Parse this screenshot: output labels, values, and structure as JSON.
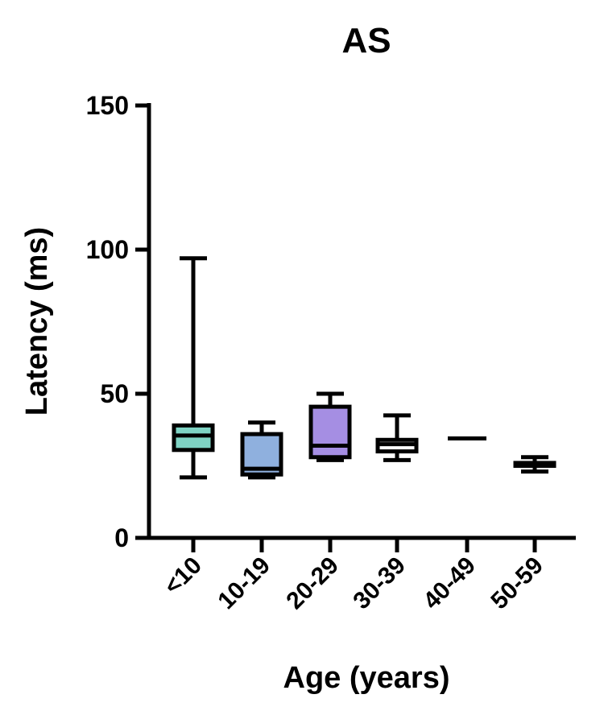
{
  "chart_data": {
    "type": "box",
    "title": "AS",
    "xlabel": "Age (years)",
    "ylabel": "Latency (ms)",
    "ylim": [
      0,
      150
    ],
    "yticks": [
      0,
      50,
      100,
      150
    ],
    "grid": false,
    "legend": "none",
    "categories": [
      "<10",
      "10-19",
      "20-29",
      "30-39",
      "40-49",
      "50-59"
    ],
    "boxes": [
      {
        "min": 21,
        "q1": 30.5,
        "median": 35.5,
        "q3": 39,
        "max": 97,
        "color": "#7fd3c4"
      },
      {
        "min": 21,
        "q1": 22,
        "median": 24,
        "q3": 36,
        "max": 40,
        "color": "#8fb0de"
      },
      {
        "min": 27,
        "q1": 28,
        "median": 32,
        "q3": 45.5,
        "max": 50,
        "color": "#a58ee3"
      },
      {
        "min": 27,
        "q1": 30,
        "median": 32.5,
        "q3": 34,
        "max": 42.5,
        "color": "#ffffff"
      },
      {
        "min": 34.5,
        "q1": 34.5,
        "median": 34.5,
        "q3": 34.5,
        "max": 34.5,
        "color": "#ffffff"
      },
      {
        "min": 23,
        "q1": 25,
        "median": 25.5,
        "q3": 26,
        "max": 28,
        "color": "#ffffff"
      }
    ]
  }
}
